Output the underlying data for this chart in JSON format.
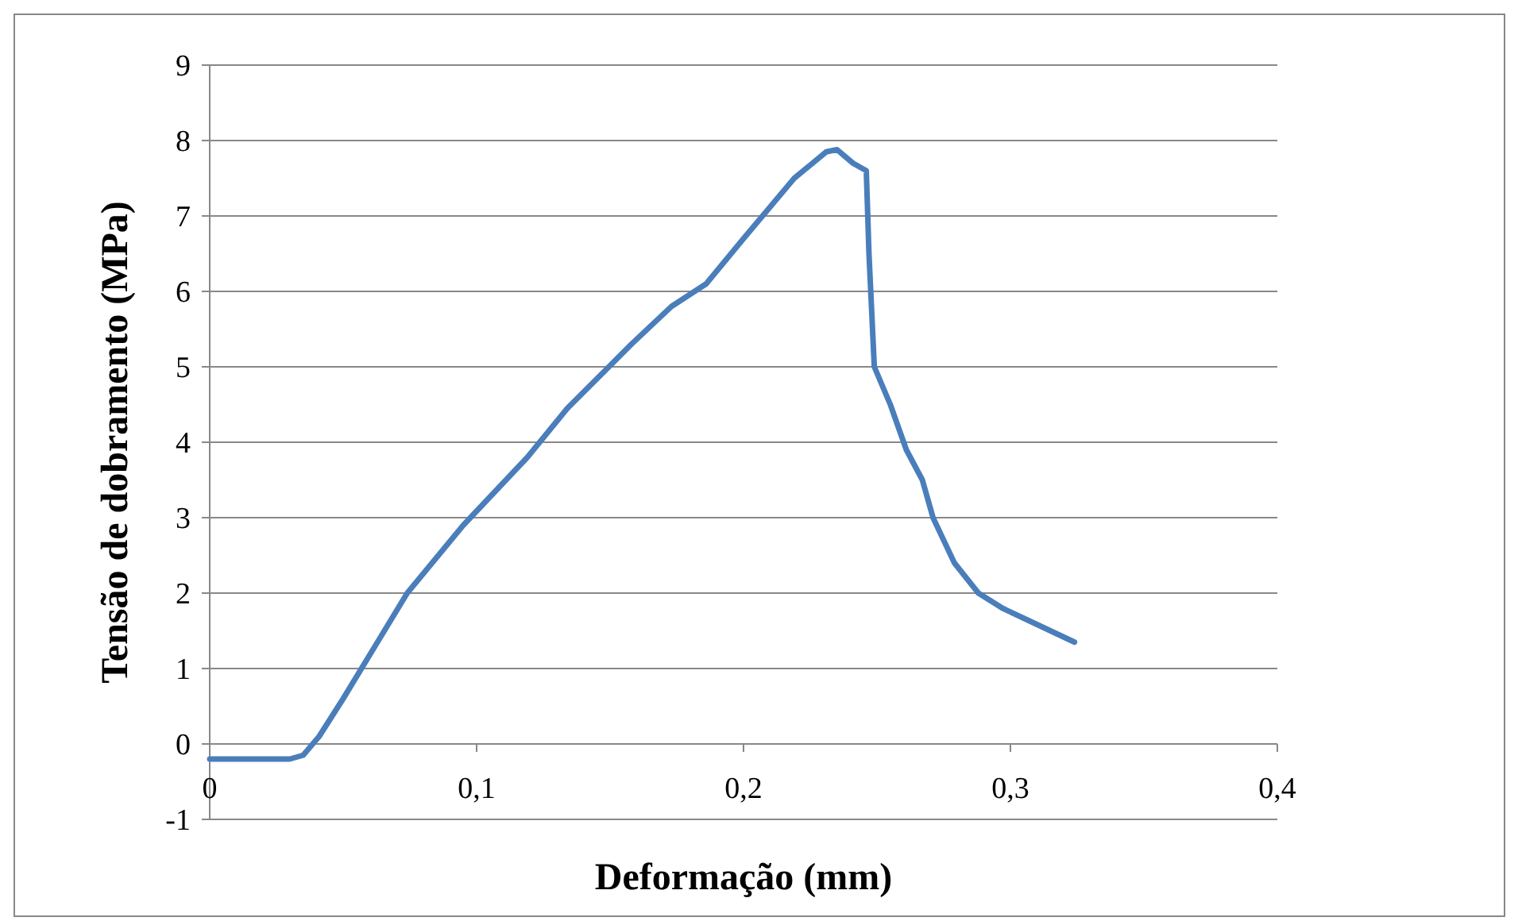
{
  "chart_data": {
    "type": "line",
    "xlabel": "Deformação (mm)",
    "ylabel": "Tensão de dobramento (MPa)",
    "xlim": [
      0,
      0.4
    ],
    "xticks": [
      {
        "value": 0,
        "label": "0"
      },
      {
        "value": 0.1,
        "label": "0,1"
      },
      {
        "value": 0.2,
        "label": "0,2"
      },
      {
        "value": 0.3,
        "label": "0,3"
      },
      {
        "value": 0.4,
        "label": "0,4"
      }
    ],
    "ylim": [
      -1,
      9
    ],
    "yticks": [
      -1,
      0,
      1,
      2,
      3,
      4,
      5,
      6,
      7,
      8,
      9
    ],
    "grid": "y",
    "marker": "none",
    "line_style": "solid",
    "series": [
      {
        "color": "#4a7ebb",
        "x": [
          0,
          0.03,
          0.035,
          0.041,
          0.05,
          0.062,
          0.074,
          0.095,
          0.119,
          0.134,
          0.158,
          0.173,
          0.186,
          0.2,
          0.219,
          0.231,
          0.235,
          0.241,
          0.246,
          0.247,
          0.249,
          0.255,
          0.261,
          0.267,
          0.271,
          0.279,
          0.288,
          0.297,
          0.309,
          0.324
        ],
        "values": [
          -0.2,
          -0.2,
          -0.15,
          0.1,
          0.6,
          1.3,
          2.0,
          2.9,
          3.8,
          4.45,
          5.3,
          5.8,
          6.1,
          6.7,
          7.5,
          7.85,
          7.88,
          7.7,
          7.6,
          6.5,
          5.0,
          4.5,
          3.9,
          3.5,
          3.0,
          2.4,
          2.0,
          1.8,
          1.6,
          1.35
        ]
      }
    ]
  }
}
